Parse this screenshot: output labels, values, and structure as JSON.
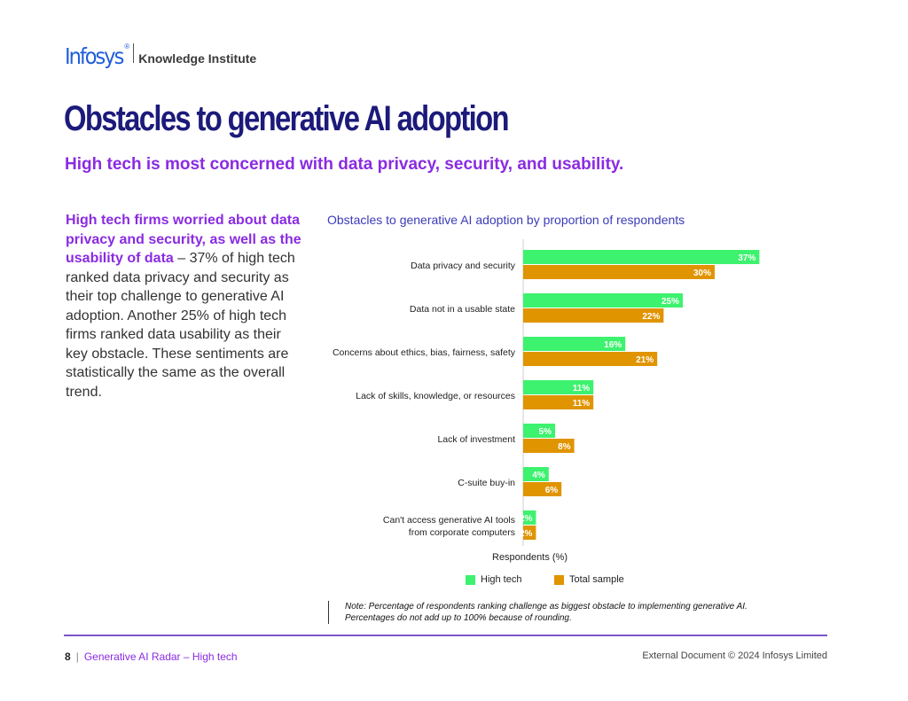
{
  "header": {
    "brand": "Infosys",
    "brand_mark": "®",
    "sub_brand": "Knowledge Institute"
  },
  "page": {
    "title": "Obstacles to generative AI adoption",
    "subtitle": "High tech is most concerned with data privacy, security, and usability."
  },
  "body": {
    "lead": "High tech firms worried about data privacy and security, as well as the usability of data",
    "text": " – 37% of high tech ranked data privacy and security as their top challenge to generative AI adoption. Another 25% of high tech firms ranked data usability as their key obstacle. These sentiments are statistically the same as the overall trend."
  },
  "chart_data": {
    "type": "bar",
    "orientation": "horizontal",
    "title": "Obstacles to generative AI adoption by proportion of respondents",
    "xlabel": "Respondents (%)",
    "ylabel": "",
    "xlim": [
      0,
      40
    ],
    "categories": [
      "Data privacy and security",
      "Data not in a usable state",
      "Concerns about ethics, bias, fairness, safety",
      "Lack of skills, knowledge, or resources",
      "Lack of investment",
      "C-suite buy-in",
      "Can't access generative AI tools\nfrom corporate computers"
    ],
    "series": [
      {
        "name": "High tech",
        "color": "#3df26e",
        "values": [
          37,
          25,
          16,
          11,
          5,
          4,
          2
        ]
      },
      {
        "name": "Total sample",
        "color": "#e09400",
        "values": [
          30,
          22,
          21,
          11,
          8,
          6,
          2
        ]
      }
    ],
    "value_suffix": "%",
    "legend_position": "bottom"
  },
  "note": {
    "text": "Note: Percentage of respondents ranking challenge as biggest obstacle to implementing generative AI. Percentages do not add up to 100% because of rounding."
  },
  "footer": {
    "page_number": "8",
    "separator": "|",
    "series": "Generative AI Radar – High tech",
    "rights": "External Document © 2024 Infosys Limited"
  }
}
